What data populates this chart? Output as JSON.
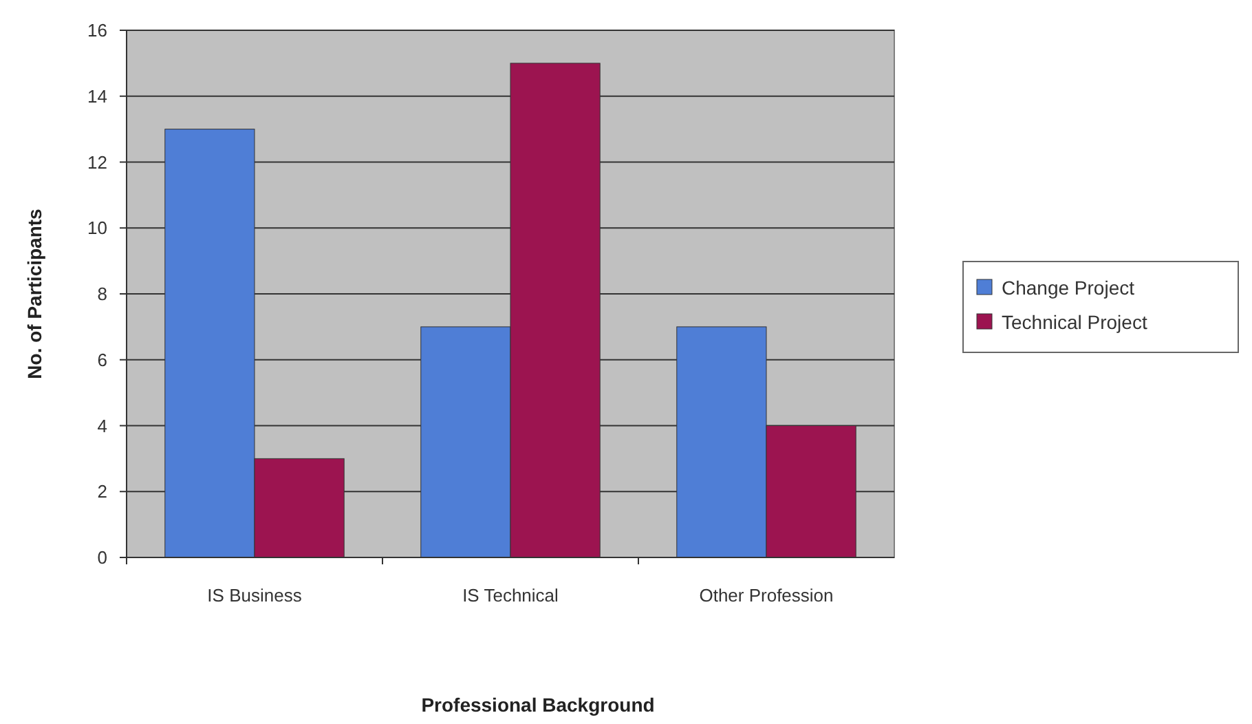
{
  "chart_data": {
    "type": "bar",
    "xlabel": "Professional Background",
    "ylabel": "No. of Participants",
    "categories": [
      "IS Business",
      "IS Technical",
      "Other Profession"
    ],
    "series": [
      {
        "name": "Change Project",
        "color": "#4f7ed6",
        "values": [
          13,
          7,
          7
        ]
      },
      {
        "name": "Technical Project",
        "color": "#9c1450",
        "values": [
          3,
          15,
          4
        ]
      }
    ],
    "ylim": [
      0,
      16
    ],
    "yticks": [
      0,
      2,
      4,
      6,
      8,
      10,
      12,
      14,
      16
    ],
    "grid": "y",
    "legend": "right"
  }
}
